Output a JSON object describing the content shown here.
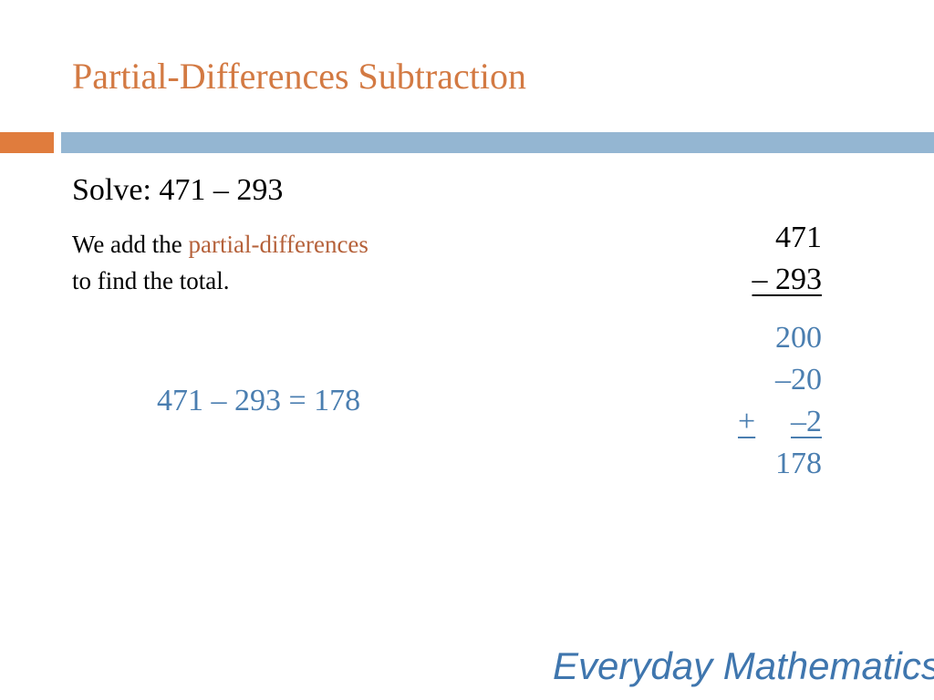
{
  "slide": {
    "title": "Partial-Differences Subtraction",
    "problem": "Solve: 471 – 293",
    "explanation": {
      "line1_prefix": "We add the ",
      "line1_highlight": "partial-differences",
      "line2": "to find the total."
    },
    "equation": "471 – 293 = 178",
    "work": {
      "minuend": "471",
      "subtrahend": "– 293",
      "partials": [
        "200",
        "–20"
      ],
      "last_partial_sign": "+",
      "last_partial": "–2",
      "result": "178"
    },
    "footer": "Everyday Mathematics"
  },
  "colors": {
    "title": "#D37A43",
    "bar_orange": "#E07C3D",
    "bar_blue": "#94B6D2",
    "highlight": "#B5613A",
    "blue_text": "#4A7EB0",
    "footer": "#3F76AE"
  }
}
